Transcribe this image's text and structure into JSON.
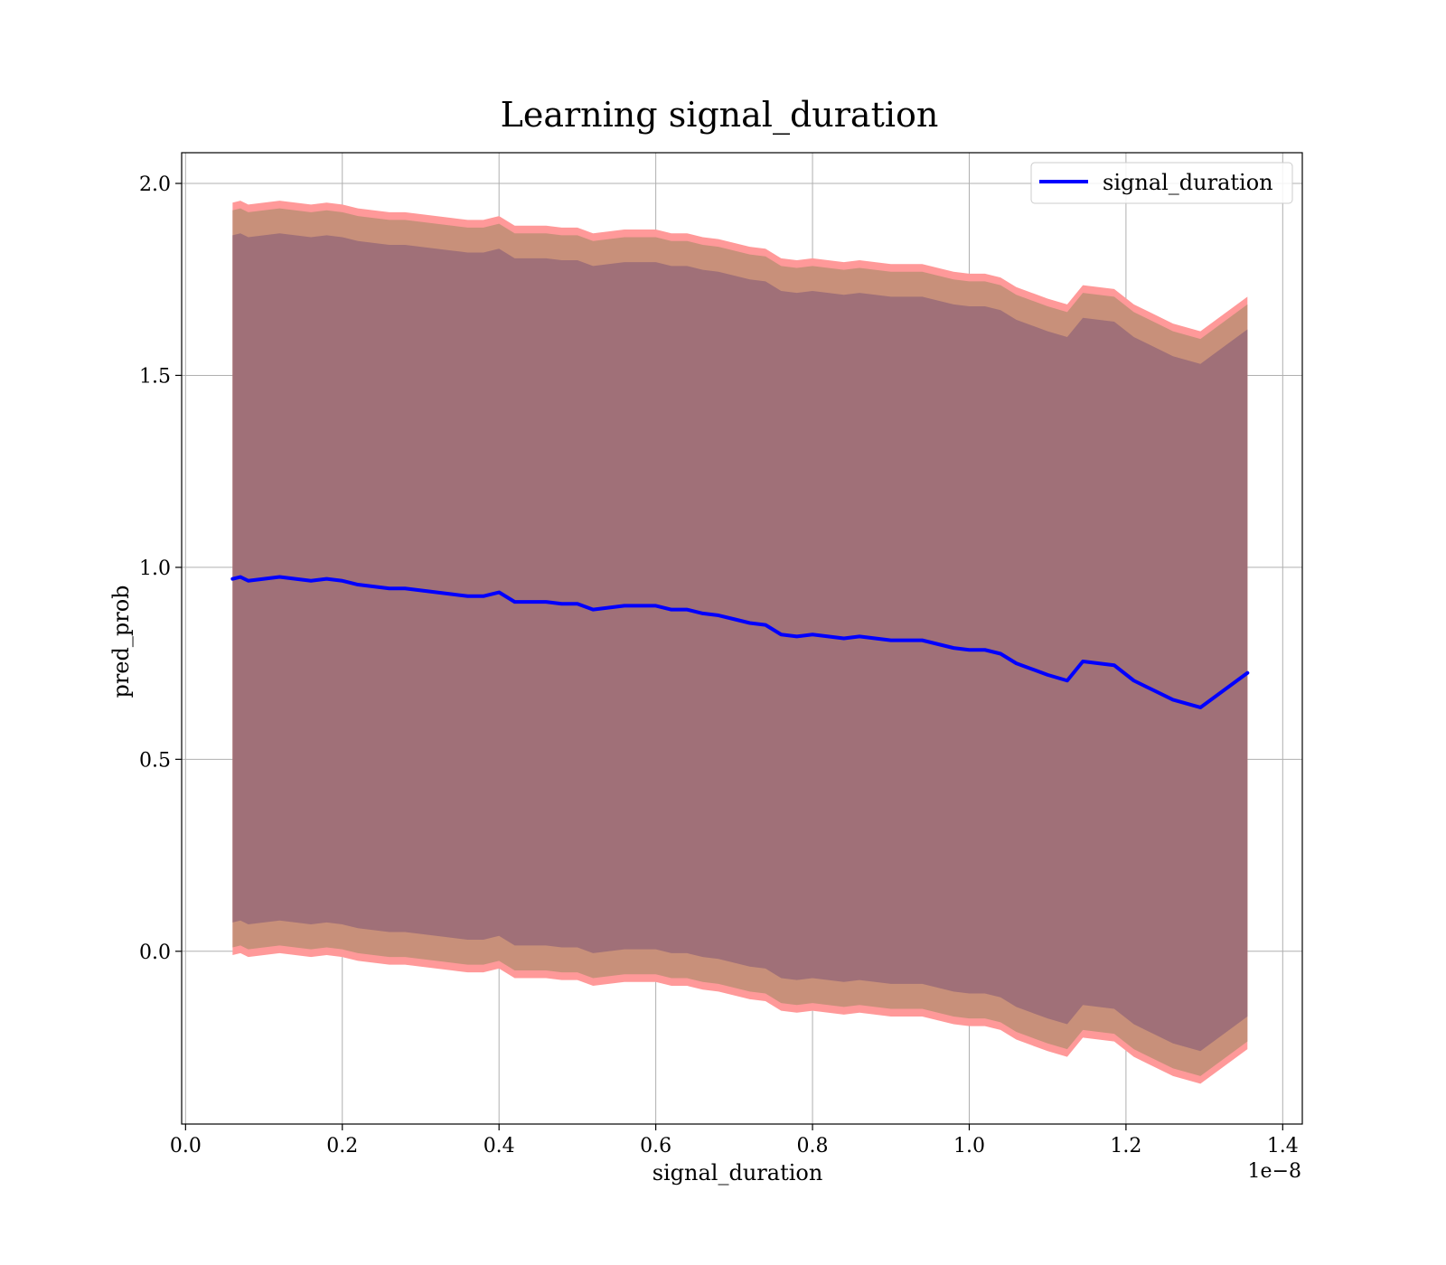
{
  "chart_data": {
    "type": "area",
    "title": "Learning signal_duration",
    "xlabel": "signal_duration",
    "ylabel": "pred_prob",
    "x_offset_label": "1e−8",
    "xlim": [
      -0.005,
      1.425
    ],
    "ylim": [
      -0.45,
      2.08
    ],
    "xticks": [
      0.0,
      0.2,
      0.4,
      0.6,
      0.8,
      1.0,
      1.2,
      1.4
    ],
    "xtick_labels": [
      "0.0",
      "0.2",
      "0.4",
      "0.6",
      "0.8",
      "1.0",
      "1.2",
      "1.4"
    ],
    "yticks": [
      0.0,
      0.5,
      1.0,
      1.5,
      2.0
    ],
    "ytick_labels": [
      "0.0",
      "0.5",
      "1.0",
      "1.5",
      "2.0"
    ],
    "grid": true,
    "legend_position": "top-right",
    "colors": {
      "line": "#0000ff",
      "band_outer": "#ff9999",
      "band_middle": "#c8907a",
      "band_inner": "#a07078"
    },
    "series": [
      {
        "name": "signal_duration",
        "x": [
          0.06,
          0.07,
          0.08,
          0.1,
          0.12,
          0.14,
          0.16,
          0.18,
          0.2,
          0.22,
          0.24,
          0.26,
          0.28,
          0.3,
          0.32,
          0.34,
          0.36,
          0.38,
          0.4,
          0.42,
          0.44,
          0.46,
          0.48,
          0.5,
          0.52,
          0.54,
          0.56,
          0.58,
          0.6,
          0.62,
          0.64,
          0.66,
          0.68,
          0.7,
          0.72,
          0.74,
          0.76,
          0.78,
          0.8,
          0.82,
          0.84,
          0.86,
          0.88,
          0.9,
          0.92,
          0.94,
          0.96,
          0.98,
          1.0,
          1.02,
          1.04,
          1.06,
          1.08,
          1.1,
          1.125,
          1.145,
          1.185,
          1.21,
          1.26,
          1.295,
          1.355
        ],
        "y": [
          0.97,
          0.975,
          0.965,
          0.97,
          0.975,
          0.97,
          0.965,
          0.97,
          0.965,
          0.955,
          0.95,
          0.945,
          0.945,
          0.94,
          0.935,
          0.93,
          0.925,
          0.925,
          0.935,
          0.91,
          0.91,
          0.91,
          0.905,
          0.905,
          0.89,
          0.895,
          0.9,
          0.9,
          0.9,
          0.89,
          0.89,
          0.88,
          0.875,
          0.865,
          0.855,
          0.85,
          0.825,
          0.82,
          0.825,
          0.82,
          0.815,
          0.82,
          0.815,
          0.81,
          0.81,
          0.81,
          0.8,
          0.79,
          0.785,
          0.785,
          0.775,
          0.75,
          0.735,
          0.72,
          0.705,
          0.755,
          0.745,
          0.705,
          0.655,
          0.635,
          0.725
        ],
        "band_inner_halfwidth": [
          0.895,
          0.895,
          0.895,
          0.895,
          0.895,
          0.895,
          0.895,
          0.895,
          0.895,
          0.895,
          0.895,
          0.895,
          0.895,
          0.895,
          0.895,
          0.895,
          0.895,
          0.895,
          0.895,
          0.895,
          0.895,
          0.895,
          0.895,
          0.895,
          0.895,
          0.895,
          0.895,
          0.895,
          0.895,
          0.895,
          0.895,
          0.895,
          0.895,
          0.895,
          0.895,
          0.895,
          0.895,
          0.895,
          0.895,
          0.895,
          0.895,
          0.895,
          0.895,
          0.895,
          0.895,
          0.895,
          0.895,
          0.895,
          0.895,
          0.895,
          0.895,
          0.895,
          0.895,
          0.895,
          0.895,
          0.895,
          0.895,
          0.895,
          0.895,
          0.895,
          0.895
        ],
        "band_middle_halfwidth": [
          0.96,
          0.96,
          0.96,
          0.96,
          0.96,
          0.96,
          0.96,
          0.96,
          0.96,
          0.96,
          0.96,
          0.96,
          0.96,
          0.96,
          0.96,
          0.96,
          0.96,
          0.96,
          0.96,
          0.96,
          0.96,
          0.96,
          0.96,
          0.96,
          0.96,
          0.96,
          0.96,
          0.96,
          0.96,
          0.96,
          0.96,
          0.96,
          0.96,
          0.96,
          0.96,
          0.96,
          0.96,
          0.96,
          0.96,
          0.96,
          0.96,
          0.96,
          0.96,
          0.96,
          0.96,
          0.96,
          0.96,
          0.96,
          0.96,
          0.96,
          0.96,
          0.96,
          0.96,
          0.96,
          0.96,
          0.96,
          0.96,
          0.96,
          0.96,
          0.96,
          0.96
        ],
        "band_outer_halfwidth": [
          0.98,
          0.98,
          0.98,
          0.98,
          0.98,
          0.98,
          0.98,
          0.98,
          0.98,
          0.98,
          0.98,
          0.98,
          0.98,
          0.98,
          0.98,
          0.98,
          0.98,
          0.98,
          0.98,
          0.98,
          0.98,
          0.98,
          0.98,
          0.98,
          0.98,
          0.98,
          0.98,
          0.98,
          0.98,
          0.98,
          0.98,
          0.98,
          0.98,
          0.98,
          0.98,
          0.98,
          0.98,
          0.98,
          0.98,
          0.98,
          0.98,
          0.98,
          0.98,
          0.98,
          0.98,
          0.98,
          0.98,
          0.98,
          0.98,
          0.98,
          0.98,
          0.98,
          0.98,
          0.98,
          0.98,
          0.98,
          0.98,
          0.98,
          0.98,
          0.98,
          0.98
        ]
      }
    ]
  }
}
